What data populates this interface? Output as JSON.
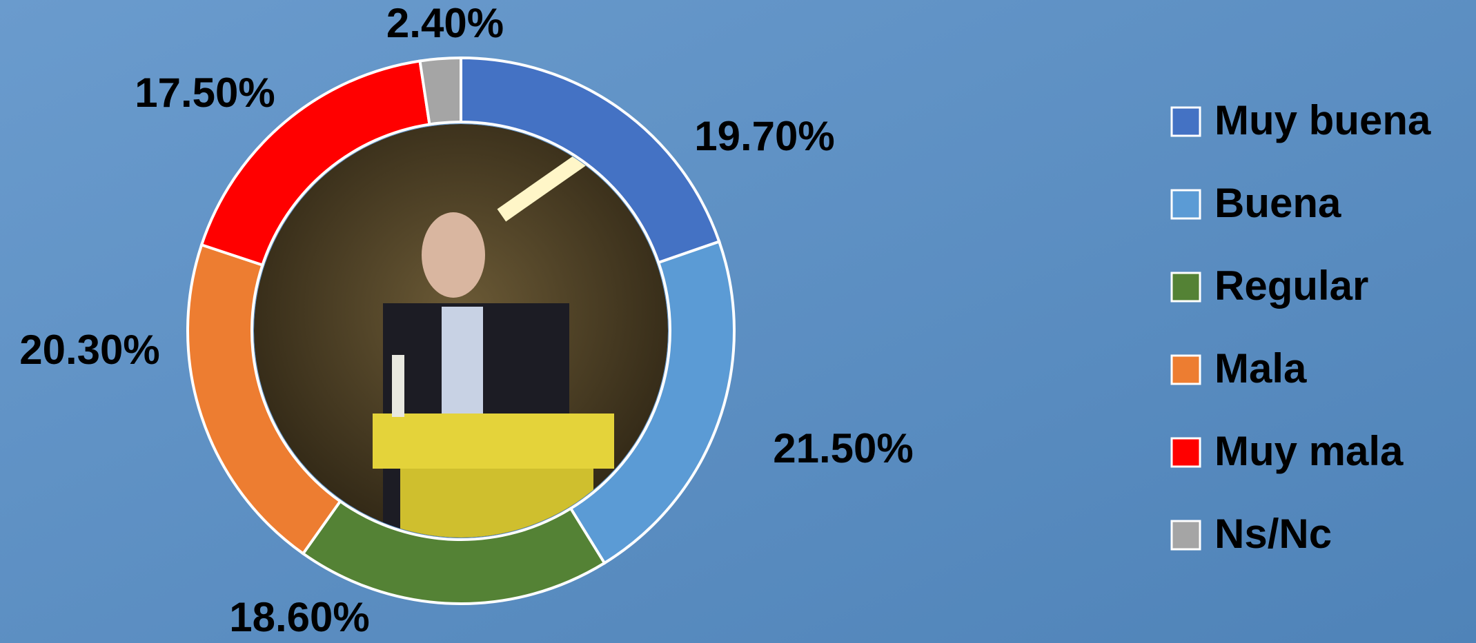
{
  "chart_data": {
    "type": "pie",
    "categories": [
      "Muy buena",
      "Buena",
      "Regular",
      "Mala",
      "Muy mala",
      "Ns/Nc"
    ],
    "values": [
      19.7,
      21.5,
      18.6,
      20.3,
      17.5,
      2.4
    ],
    "value_labels": [
      "19.70%",
      "21.50%",
      "18.60%",
      "20.30%",
      "17.50%",
      "2.40%"
    ],
    "colors": [
      "#4472c4",
      "#5b9bd5",
      "#548235",
      "#ed7d31",
      "#ff0000",
      "#a5a5a5"
    ],
    "legend": "right"
  }
}
